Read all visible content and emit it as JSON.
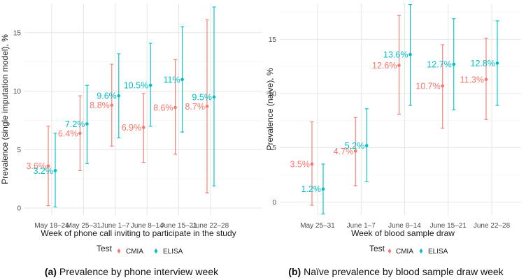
{
  "colors": {
    "CMIA": "#F8766D",
    "ELISA": "#00BFC4"
  },
  "legend": {
    "title": "Test",
    "entries": [
      "CMIA",
      "ELISA"
    ]
  },
  "chart_data": [
    {
      "type": "scatter",
      "subtype": "point-with-errorbars",
      "caption_label": "(a)",
      "caption_text": " Prevalence by phone interview week",
      "xlabel": "Week of phone call inviting to participate in the study",
      "ylabel": "Prevalence (single imputation model), %",
      "ylim": [
        -0.6,
        17.5
      ],
      "yticks": [
        0,
        5,
        10,
        15
      ],
      "categories": [
        "May 18–24",
        "May 25–31",
        "June 1–7",
        "June 8–14",
        "June 15–21",
        "June 22–28"
      ],
      "series": [
        {
          "name": "CMIA",
          "values": [
            3.6,
            6.4,
            8.8,
            6.9,
            8.6,
            8.7
          ],
          "lower": [
            0.2,
            3.2,
            5.3,
            3.9,
            4.6,
            1.3
          ],
          "upper": [
            7.0,
            9.6,
            12.3,
            9.8,
            12.7,
            16.1
          ],
          "labels": [
            "3.6%",
            "6.4%",
            "8.8%",
            "6.9%",
            "8.6%",
            "8.7%"
          ]
        },
        {
          "name": "ELISA",
          "values": [
            3.2,
            7.2,
            9.6,
            10.5,
            11.0,
            9.5
          ],
          "lower": [
            0.1,
            3.8,
            6.0,
            7.0,
            6.5,
            1.9
          ],
          "upper": [
            6.4,
            10.5,
            13.2,
            14.1,
            15.5,
            17.2
          ],
          "labels": [
            "3.2%",
            "7.2%",
            "9.6%",
            "10.5%",
            "11%",
            "9.5%"
          ]
        }
      ]
    },
    {
      "type": "scatter",
      "subtype": "point-with-errorbars",
      "caption_label": "(b)",
      "caption_text": " Naïve prevalence by blood sample draw week",
      "xlabel": "Week of blood sample draw",
      "ylabel": "Prevalence (naïve), %",
      "ylim": [
        -1.2,
        18.3
      ],
      "yticks": [
        0,
        5,
        10,
        15
      ],
      "categories": [
        "May 25–31",
        "June 1–7",
        "June 8–14",
        "June 15–21",
        "June 22–28"
      ],
      "series": [
        {
          "name": "CMIA",
          "values": [
            3.5,
            4.7,
            12.6,
            10.7,
            11.3
          ],
          "lower": [
            -0.3,
            1.5,
            8.1,
            6.8,
            7.6
          ],
          "upper": [
            7.4,
            7.8,
            17.2,
            14.5,
            15.1
          ],
          "labels": [
            "3.5%",
            "4.7%",
            "12.6%",
            "10.7%",
            "11.3%"
          ]
        },
        {
          "name": "ELISA",
          "values": [
            1.2,
            5.2,
            13.6,
            12.7,
            12.8
          ],
          "lower": [
            -1.1,
            1.9,
            8.9,
            8.5,
            8.9
          ],
          "upper": [
            3.5,
            8.6,
            18.2,
            16.9,
            16.7
          ],
          "labels": [
            "1.2%",
            "5.2%",
            "13.6%",
            "12.7%",
            "12.8%"
          ]
        }
      ]
    }
  ]
}
